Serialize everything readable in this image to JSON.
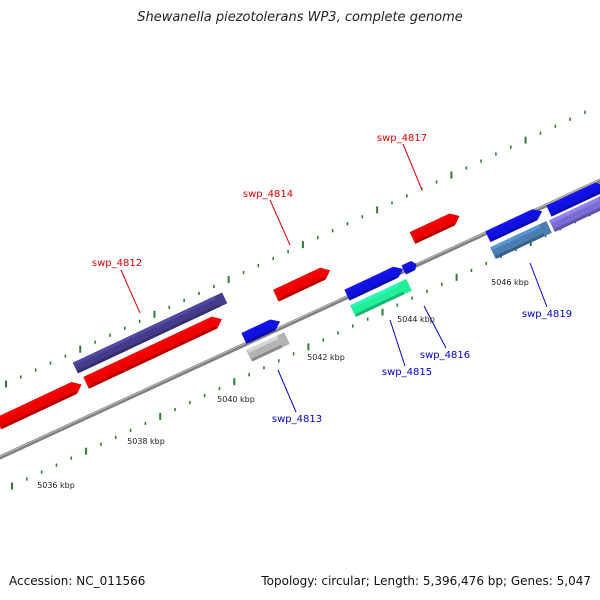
{
  "header": {
    "title": "Shewanella piezotolerans WP3, complete genome"
  },
  "footer": {
    "accession": "Accession: NC_011566",
    "summary": "Topology: circular; Length: 5,396,476 bp; Genes: 5,047"
  },
  "colors": {
    "backbone": "#7f7f7f",
    "tick": "#2e7d32",
    "label_forward": "#e00000",
    "label_reverse": "#0000cc",
    "red": "#ee0000",
    "blue": "#1010e0",
    "darkpurple": "#443c8a",
    "silver": "#b4b4b4",
    "aqua": "#22ee99",
    "steel": "#4a7db2",
    "lavender": "#7a6cd6"
  },
  "scale": {
    "unit": "kbp",
    "ticks": [
      {
        "value": 5036,
        "label": "5036 kbp"
      },
      {
        "value": 5038,
        "label": "5038 kbp"
      },
      {
        "value": 5040,
        "label": "5040 kbp"
      },
      {
        "value": 5042,
        "label": "5042 kbp"
      },
      {
        "value": 5044,
        "label": "5044 kbp"
      },
      {
        "value": 5046,
        "label": "5046 kbp"
      }
    ]
  },
  "genes_labeled": [
    {
      "name": "swp_4812",
      "strand": "forward"
    },
    {
      "name": "swp_4813",
      "strand": "reverse"
    },
    {
      "name": "swp_4814",
      "strand": "forward"
    },
    {
      "name": "swp_4815",
      "strand": "reverse"
    },
    {
      "name": "swp_4816",
      "strand": "reverse"
    },
    {
      "name": "swp_4817",
      "strand": "forward"
    },
    {
      "name": "swp_4819",
      "strand": "reverse"
    }
  ]
}
